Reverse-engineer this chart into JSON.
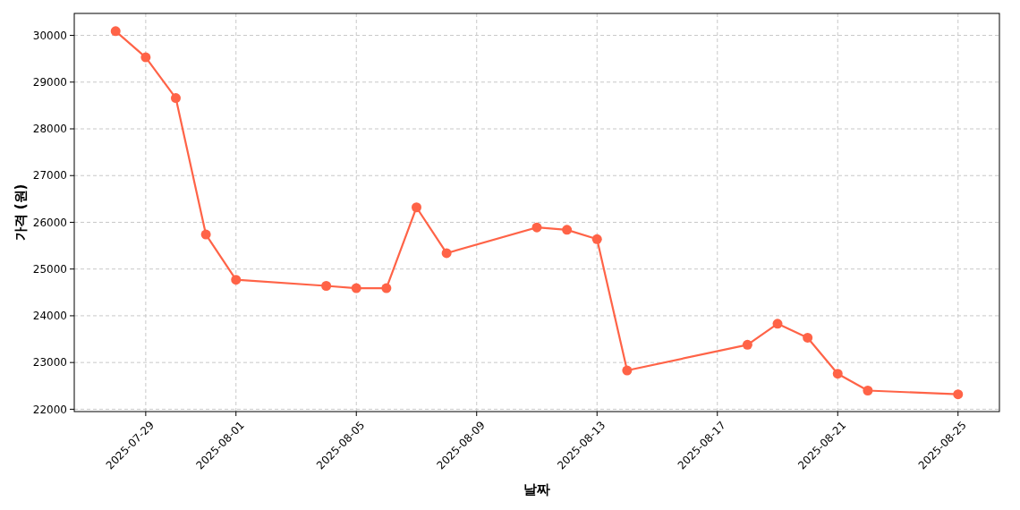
{
  "chart_data": {
    "type": "line",
    "xlabel": "날짜",
    "ylabel": "가격 (원)",
    "x": [
      "2025-07-28",
      "2025-07-29",
      "2025-07-30",
      "2025-07-31",
      "2025-08-01",
      "2025-08-04",
      "2025-08-05",
      "2025-08-06",
      "2025-08-07",
      "2025-08-08",
      "2025-08-11",
      "2025-08-12",
      "2025-08-13",
      "2025-08-14",
      "2025-08-18",
      "2025-08-19",
      "2025-08-20",
      "2025-08-21",
      "2025-08-22",
      "2025-08-25"
    ],
    "series": [
      {
        "color": "#ff6347",
        "values": [
          30090,
          29530,
          28660,
          25740,
          24770,
          24640,
          24590,
          24590,
          26320,
          25340,
          25890,
          25840,
          25640,
          22830,
          23380,
          23830,
          23530,
          22760,
          22400,
          22320
        ]
      }
    ],
    "xlim": [
      "2025-07-26T15:00",
      "2025-08-26T09:00"
    ],
    "ylim": [
      21950,
      30470
    ],
    "xticks": [
      "2025-07-29",
      "2025-08-01",
      "2025-08-05",
      "2025-08-09",
      "2025-08-13",
      "2025-08-17",
      "2025-08-21",
      "2025-08-25"
    ],
    "yticks": [
      22000,
      23000,
      24000,
      25000,
      26000,
      27000,
      28000,
      29000,
      30000
    ],
    "grid": true,
    "marker": "circle",
    "line_style": "solid"
  }
}
